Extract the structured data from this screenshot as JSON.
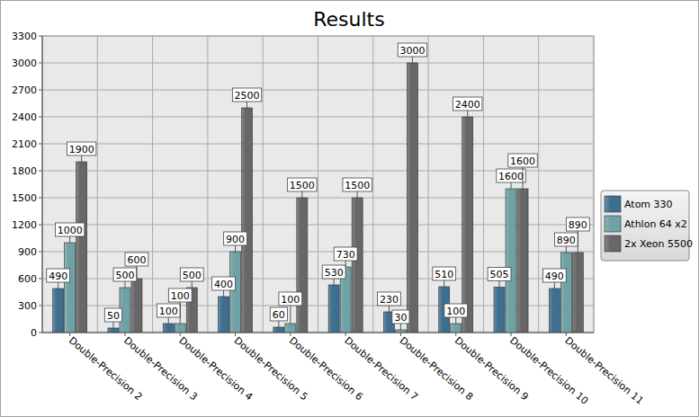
{
  "chart_data": {
    "type": "bar",
    "title": "Results",
    "categories": [
      "Double-Precision 2",
      "Double-Precision 3",
      "Double-Precision 4",
      "Double-Precision 5",
      "Double-Precision 6",
      "Double-Precision 7",
      "Double-Precision 8",
      "Double-Precision 9",
      "Double-Precision 10",
      "Double-Precision 11"
    ],
    "series": [
      {
        "name": "Atom 330",
        "color": "#3f6f90",
        "values": [
          490,
          50,
          100,
          400,
          60,
          530,
          230,
          510,
          505,
          490
        ]
      },
      {
        "name": "Athlon 64 x2",
        "color": "#6fa2a4",
        "values": [
          1000,
          500,
          100,
          900,
          100,
          730,
          30,
          100,
          1600,
          890
        ]
      },
      {
        "name": "2x Xeon 5500",
        "color": "#676767",
        "values": [
          1900,
          600,
          500,
          2500,
          1500,
          1500,
          3000,
          2400,
          1600,
          890
        ]
      }
    ],
    "ylim": [
      0,
      3300
    ],
    "yticks": [
      0,
      300,
      600,
      900,
      1200,
      1500,
      1800,
      2100,
      2400,
      2700,
      3000,
      3300
    ],
    "grid": true,
    "legend": "right",
    "data_labels": true
  }
}
